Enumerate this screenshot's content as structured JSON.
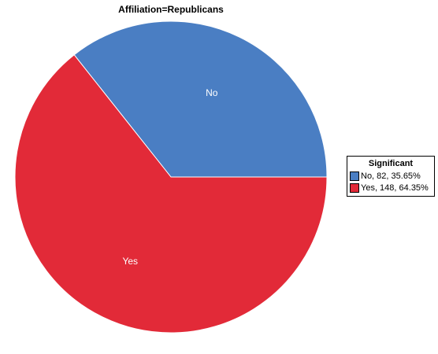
{
  "chart_data": {
    "type": "pie",
    "title": "Affiliation=Republicans",
    "slices": [
      {
        "label": "No",
        "value": 82,
        "percent": 35.65,
        "color": "#4a7ec3",
        "legend_text": "No, 82, 35.65%"
      },
      {
        "label": "Yes",
        "value": 148,
        "percent": 64.35,
        "color": "#e22a38",
        "legend_text": "Yes, 148, 64.35%"
      }
    ],
    "legend": {
      "title": "Significant",
      "placement": "right"
    }
  }
}
